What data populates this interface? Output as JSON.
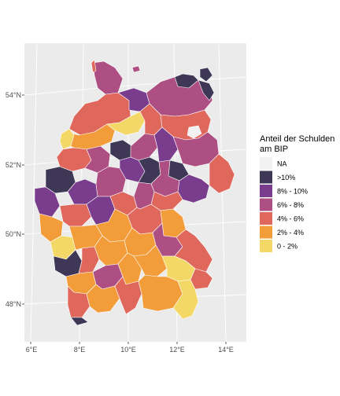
{
  "map": {
    "lat_labels": [
      "54°N",
      "52°N",
      "50°N",
      "48°N"
    ],
    "lon_labels": [
      "6°E",
      "8°E",
      "10°E",
      "12°E",
      "14°E"
    ]
  },
  "legend": {
    "title_line1": "Anteil der Schulden",
    "title_line2": "am BIP",
    "items": [
      {
        "label": "NA",
        "color": "#f2f2f2"
      },
      {
        "label": ">10%",
        "color": "#3e3856"
      },
      {
        "label": "8% - 10%",
        "color": "#7a3c8c"
      },
      {
        "label": "6% - 8%",
        "color": "#ad4f82"
      },
      {
        "label": "4% - 6%",
        "color": "#e0675b"
      },
      {
        "label": "2% - 4%",
        "color": "#f39c3a"
      },
      {
        "label": "0 - 2%",
        "color": "#f3d868"
      }
    ]
  },
  "colors": {
    "panel_bg": "#ebebeb",
    "grid": "#ffffff",
    "border": "#ffffff"
  }
}
